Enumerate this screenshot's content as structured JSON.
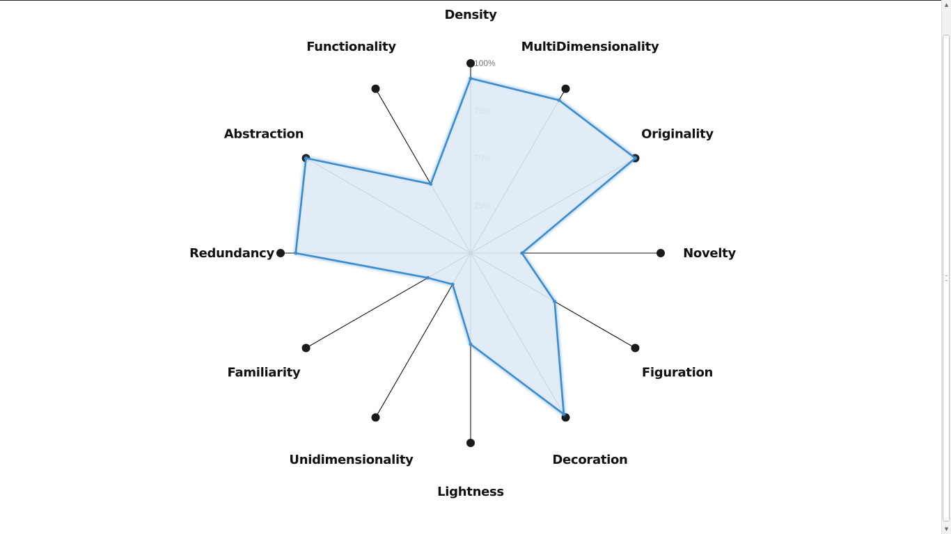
{
  "chart_data": {
    "type": "radar",
    "axes": [
      "Density",
      "MultiDimensionality",
      "Originality",
      "Novelty",
      "Figuration",
      "Decoration",
      "Lightness",
      "Unidimensionality",
      "Familiarity",
      "Redundancy",
      "Abstraction",
      "Functionality"
    ],
    "values": [
      0.92,
      0.93,
      1.0,
      0.27,
      0.51,
      0.98,
      0.48,
      0.19,
      0.26,
      0.92,
      1.0,
      0.42
    ],
    "ticks": [
      "25%",
      "50%",
      "75%",
      "100%"
    ],
    "tick_values": [
      0.25,
      0.5,
      0.75,
      1.0
    ],
    "range": [
      0,
      1
    ],
    "fill_color": "#deeaf5",
    "stroke_color": "#3a8ccc",
    "axis_color": "#111111"
  },
  "scrollbar": {
    "up_icon": "▲",
    "down_icon": "▼"
  }
}
